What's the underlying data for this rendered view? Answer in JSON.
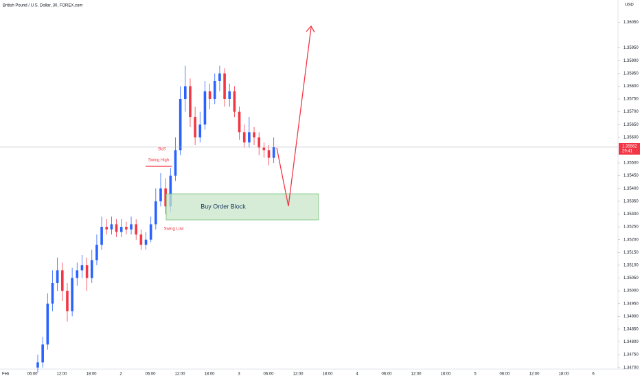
{
  "chart_data": {
    "type": "candlestick",
    "title": "British Pound / U.S. Dollar, 30, FOREX.com",
    "currency": "USD",
    "up_color": "#2962ff",
    "down_color": "#f23645",
    "grid": false,
    "ylim": [
      1.34694,
      1.36137
    ],
    "yticks": [
      {
        "value": 1.347,
        "label": "1.34700"
      },
      {
        "value": 1.3475,
        "label": "1.34750"
      },
      {
        "value": 1.348,
        "label": "1.34800"
      },
      {
        "value": 1.3485,
        "label": "1.34850"
      },
      {
        "value": 1.349,
        "label": "1.34900"
      },
      {
        "value": 1.3495,
        "label": "1.34950"
      },
      {
        "value": 1.35,
        "label": "1.35000"
      },
      {
        "value": 1.3505,
        "label": "1.35050"
      },
      {
        "value": 1.351,
        "label": "1.35100"
      },
      {
        "value": 1.3515,
        "label": "1.35150"
      },
      {
        "value": 1.352,
        "label": "1.35200"
      },
      {
        "value": 1.3525,
        "label": "1.35250"
      },
      {
        "value": 1.353,
        "label": "1.35300"
      },
      {
        "value": 1.3535,
        "label": "1.35350"
      },
      {
        "value": 1.354,
        "label": "1.35400"
      },
      {
        "value": 1.3545,
        "label": "1.35450"
      },
      {
        "value": 1.355,
        "label": "1.35500"
      },
      {
        "value": 1.356,
        "label": "1.35600"
      },
      {
        "value": 1.3565,
        "label": "1.35650"
      },
      {
        "value": 1.357,
        "label": "1.35700"
      },
      {
        "value": 1.3575,
        "label": "1.35750"
      },
      {
        "value": 1.358,
        "label": "1.35800"
      },
      {
        "value": 1.3585,
        "label": "1.35850"
      },
      {
        "value": 1.359,
        "label": "1.35900"
      },
      {
        "value": 1.3595,
        "label": "1.35950"
      },
      {
        "value": 1.3605,
        "label": "1.36050"
      }
    ],
    "x_labels": [
      "Feb",
      "06:00",
      "12:00",
      "18:00",
      "2",
      "06:00",
      "12:00",
      "18:00",
      "3",
      "06:00",
      "12:00",
      "18:00",
      "4",
      "06:00",
      "12:00",
      "18:00",
      "5",
      "06:00",
      "12:00",
      "18:00",
      "6"
    ],
    "open": [
      1.347,
      1.3472,
      1.3479,
      1.3495,
      1.3503,
      1.3508,
      1.35,
      1.3492,
      1.3505,
      1.3508,
      1.351,
      1.3505,
      1.3512,
      1.3518,
      1.3525,
      1.3524,
      1.3526,
      1.3523,
      1.3525,
      1.3524,
      1.3526,
      1.3522,
      1.3518,
      1.352,
      1.3526,
      1.3535,
      1.354,
      1.3533,
      1.3545,
      1.3555,
      1.3575,
      1.358,
      1.3568,
      1.356,
      1.3565,
      1.3578,
      1.3575,
      1.3582,
      1.3585,
      1.3575,
      1.3578,
      1.357,
      1.3562,
      1.3558,
      1.3562,
      1.356,
      1.3556,
      1.3555,
      1.3552
    ],
    "high": [
      1.3475,
      1.3482,
      1.3499,
      1.3508,
      1.3513,
      1.3511,
      1.3503,
      1.3509,
      1.3511,
      1.3514,
      1.3513,
      1.3516,
      1.3522,
      1.3529,
      1.3528,
      1.3529,
      1.3528,
      1.3528,
      1.3527,
      1.3529,
      1.3528,
      1.3524,
      1.3523,
      1.3529,
      1.354,
      1.3546,
      1.3544,
      1.3548,
      1.356,
      1.358,
      1.3588,
      1.3583,
      1.3572,
      1.357,
      1.3582,
      1.3581,
      1.3585,
      1.3588,
      1.3587,
      1.3581,
      1.358,
      1.3572,
      1.3565,
      1.3568,
      1.3564,
      1.3562,
      1.3558,
      1.3557,
      1.356
    ],
    "low": [
      1.3468,
      1.347,
      1.3477,
      1.3492,
      1.35,
      1.3496,
      1.3488,
      1.349,
      1.3502,
      1.3505,
      1.35,
      1.3503,
      1.351,
      1.3516,
      1.3522,
      1.3522,
      1.3521,
      1.3521,
      1.3522,
      1.3522,
      1.352,
      1.3516,
      1.3516,
      1.3519,
      1.3524,
      1.3533,
      1.353,
      1.3531,
      1.3543,
      1.3553,
      1.357,
      1.3564,
      1.3557,
      1.3558,
      1.3563,
      1.3571,
      1.3573,
      1.3578,
      1.3572,
      1.3572,
      1.3568,
      1.3559,
      1.3556,
      1.3556,
      1.3557,
      1.3553,
      1.3552,
      1.3549,
      1.355
    ],
    "close": [
      1.3472,
      1.3479,
      1.3495,
      1.3503,
      1.3508,
      1.35,
      1.3492,
      1.3505,
      1.3508,
      1.351,
      1.3505,
      1.3512,
      1.3518,
      1.3525,
      1.3524,
      1.3526,
      1.3523,
      1.3525,
      1.3524,
      1.3526,
      1.3522,
      1.3518,
      1.352,
      1.3526,
      1.3535,
      1.354,
      1.3533,
      1.3545,
      1.3555,
      1.3575,
      1.358,
      1.3568,
      1.356,
      1.3565,
      1.3578,
      1.3575,
      1.3582,
      1.3585,
      1.3575,
      1.3578,
      1.357,
      1.3562,
      1.3558,
      1.3562,
      1.356,
      1.3556,
      1.3555,
      1.3552,
      1.35562
    ],
    "last_price": 1.35562,
    "countdown": "29:41",
    "annotations": {
      "bos": "BoS",
      "swing_high": "Swing High",
      "swing_low": "Swing Low",
      "order_block": "Buy Order Block"
    }
  }
}
